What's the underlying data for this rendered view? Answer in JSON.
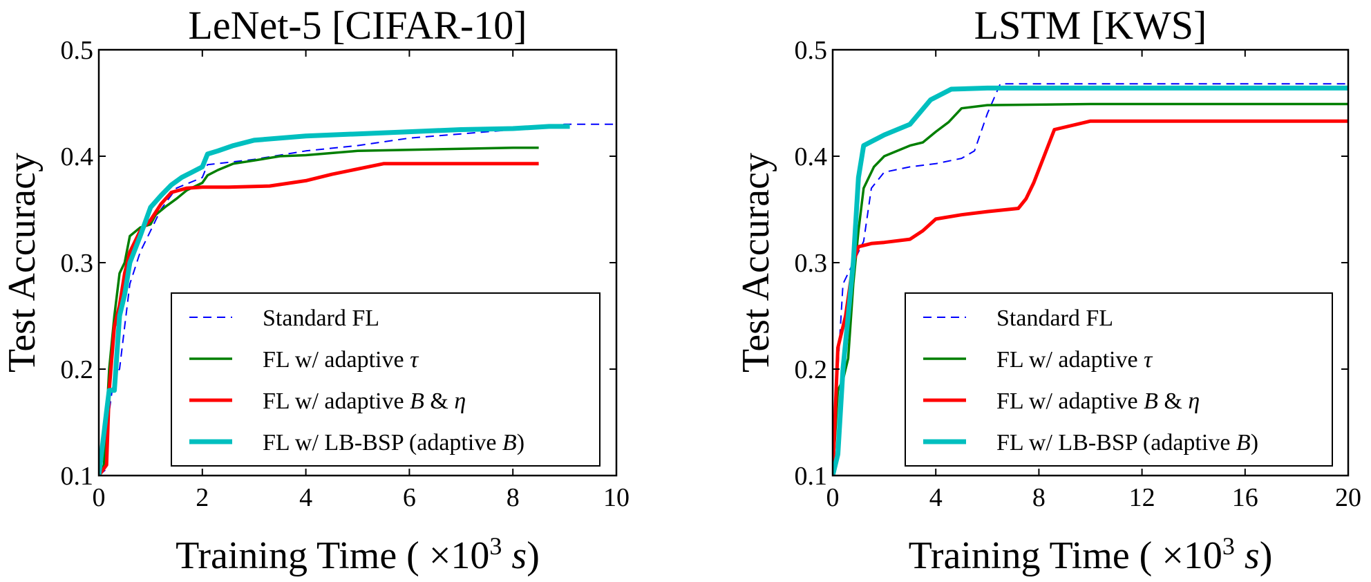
{
  "chart_data": [
    {
      "type": "line",
      "title": "LeNet-5 [CIFAR-10]",
      "xlabel_parts": [
        "Training Time ( ×10",
        "3",
        " s)"
      ],
      "xlabel_unit": "s",
      "ylabel": "Test Accuracy",
      "xlim": [
        0,
        10
      ],
      "ylim": [
        0.1,
        0.5
      ],
      "xticks": [
        0,
        2,
        4,
        6,
        8,
        10
      ],
      "xtick_labels": [
        "0",
        "2",
        "4",
        "6",
        "8",
        "10"
      ],
      "yticks": [
        0.1,
        0.2,
        0.3,
        0.4,
        0.5
      ],
      "ytick_labels": [
        "0.1",
        "0.2",
        "0.3",
        "0.4",
        "0.5"
      ],
      "grid": false,
      "legend_position": "lower-right",
      "legend": [
        {
          "prefix": "Standard FL",
          "symbol": "",
          "mid": "",
          "symbol2": "",
          "suffix": ""
        },
        {
          "prefix": "FL w/ adaptive ",
          "symbol": "τ",
          "mid": "",
          "symbol2": "",
          "suffix": ""
        },
        {
          "prefix": "FL w/ adaptive ",
          "symbol": "B",
          "mid": " & ",
          "symbol2": "η",
          "suffix": ""
        },
        {
          "prefix": "FL w/ LB-BSP (adaptive ",
          "symbol": "B",
          "mid": "",
          "symbol2": "",
          "suffix": ")"
        }
      ],
      "series": [
        {
          "color": "#0000ff",
          "style": "dashed",
          "width": 2,
          "points": [
            [
              0,
              0.1
            ],
            [
              0.12,
              0.105
            ],
            [
              0.2,
              0.16
            ],
            [
              0.3,
              0.195
            ],
            [
              0.4,
              0.2
            ],
            [
              0.5,
              0.24
            ],
            [
              0.6,
              0.28
            ],
            [
              0.8,
              0.31
            ],
            [
              1.0,
              0.33
            ],
            [
              1.2,
              0.35
            ],
            [
              1.5,
              0.37
            ],
            [
              2.0,
              0.38
            ],
            [
              2.1,
              0.392
            ],
            [
              3,
              0.397
            ],
            [
              4,
              0.405
            ],
            [
              5,
              0.41
            ],
            [
              6,
              0.417
            ],
            [
              7,
              0.421
            ],
            [
              8,
              0.425
            ],
            [
              9,
              0.43
            ],
            [
              10,
              0.43
            ]
          ]
        },
        {
          "color": "#007f00",
          "style": "solid",
          "width": 3.5,
          "points": [
            [
              0,
              0.1
            ],
            [
              0.1,
              0.11
            ],
            [
              0.2,
              0.2
            ],
            [
              0.3,
              0.25
            ],
            [
              0.4,
              0.29
            ],
            [
              0.5,
              0.3
            ],
            [
              0.6,
              0.325
            ],
            [
              0.8,
              0.333
            ],
            [
              1.0,
              0.336
            ],
            [
              1.1,
              0.345
            ],
            [
              1.3,
              0.353
            ],
            [
              1.5,
              0.36
            ],
            [
              1.7,
              0.368
            ],
            [
              2.0,
              0.375
            ],
            [
              2.1,
              0.382
            ],
            [
              2.3,
              0.387
            ],
            [
              2.6,
              0.393
            ],
            [
              3,
              0.396
            ],
            [
              3.5,
              0.4
            ],
            [
              4,
              0.401
            ],
            [
              5,
              0.405
            ],
            [
              6,
              0.406
            ],
            [
              7,
              0.407
            ],
            [
              8,
              0.408
            ],
            [
              8.5,
              0.408
            ]
          ]
        },
        {
          "color": "#ff0000",
          "style": "solid",
          "width": 5,
          "points": [
            [
              0,
              0.1
            ],
            [
              0.15,
              0.11
            ],
            [
              0.2,
              0.18
            ],
            [
              0.3,
              0.24
            ],
            [
              0.4,
              0.26
            ],
            [
              0.5,
              0.29
            ],
            [
              0.6,
              0.31
            ],
            [
              0.8,
              0.33
            ],
            [
              1.0,
              0.34
            ],
            [
              1.2,
              0.355
            ],
            [
              1.4,
              0.366
            ],
            [
              1.7,
              0.37
            ],
            [
              2,
              0.371
            ],
            [
              2.5,
              0.371
            ],
            [
              3.3,
              0.372
            ],
            [
              4,
              0.377
            ],
            [
              4.5,
              0.383
            ],
            [
              5.5,
              0.393
            ],
            [
              7,
              0.393
            ],
            [
              8.5,
              0.393
            ]
          ]
        },
        {
          "color": "#00bfbf",
          "style": "solid",
          "width": 7,
          "points": [
            [
              0,
              0.1
            ],
            [
              0.1,
              0.14
            ],
            [
              0.15,
              0.16
            ],
            [
              0.2,
              0.18
            ],
            [
              0.3,
              0.18
            ],
            [
              0.4,
              0.25
            ],
            [
              0.5,
              0.27
            ],
            [
              0.6,
              0.3
            ],
            [
              0.8,
              0.325
            ],
            [
              1.0,
              0.352
            ],
            [
              1.2,
              0.363
            ],
            [
              1.4,
              0.373
            ],
            [
              1.6,
              0.38
            ],
            [
              1.8,
              0.385
            ],
            [
              2.0,
              0.39
            ],
            [
              2.1,
              0.402
            ],
            [
              2.3,
              0.405
            ],
            [
              2.6,
              0.41
            ],
            [
              3,
              0.415
            ],
            [
              4,
              0.419
            ],
            [
              5,
              0.421
            ],
            [
              6,
              0.423
            ],
            [
              7,
              0.425
            ],
            [
              8,
              0.426
            ],
            [
              8.7,
              0.428
            ],
            [
              9.1,
              0.428
            ]
          ]
        }
      ]
    },
    {
      "type": "line",
      "title": "LSTM [KWS]",
      "xlabel_parts": [
        "Training Time ( ×10",
        "3",
        " s)"
      ],
      "xlabel_unit": "s",
      "ylabel": "Test Accuracy",
      "xlim": [
        0,
        20
      ],
      "ylim": [
        0.1,
        0.5
      ],
      "xticks": [
        0,
        4,
        8,
        12,
        16,
        20
      ],
      "xtick_labels": [
        "0",
        "4",
        "8",
        "12",
        "16",
        "20"
      ],
      "yticks": [
        0.1,
        0.2,
        0.3,
        0.4,
        0.5
      ],
      "ytick_labels": [
        "0.1",
        "0.2",
        "0.3",
        "0.4",
        "0.5"
      ],
      "grid": false,
      "legend_position": "lower-right",
      "legend": [
        {
          "prefix": "Standard FL",
          "symbol": "",
          "mid": "",
          "symbol2": "",
          "suffix": ""
        },
        {
          "prefix": "FL w/ adaptive ",
          "symbol": "τ",
          "mid": "",
          "symbol2": "",
          "suffix": ""
        },
        {
          "prefix": "FL w/ adaptive ",
          "symbol": "B",
          "mid": " & ",
          "symbol2": "η",
          "suffix": ""
        },
        {
          "prefix": "FL w/ LB-BSP (adaptive ",
          "symbol": "B",
          "mid": "",
          "symbol2": "",
          "suffix": ")"
        }
      ],
      "series": [
        {
          "color": "#0000ff",
          "style": "dashed",
          "width": 2,
          "points": [
            [
              0,
              0.1
            ],
            [
              0.2,
              0.2
            ],
            [
              0.4,
              0.28
            ],
            [
              0.8,
              0.3
            ],
            [
              1.2,
              0.32
            ],
            [
              1.5,
              0.37
            ],
            [
              2,
              0.385
            ],
            [
              3,
              0.39
            ],
            [
              4,
              0.393
            ],
            [
              5,
              0.398
            ],
            [
              5.5,
              0.405
            ],
            [
              6,
              0.44
            ],
            [
              6.5,
              0.468
            ],
            [
              10,
              0.468
            ],
            [
              15,
              0.468
            ],
            [
              20,
              0.468
            ]
          ]
        },
        {
          "color": "#007f00",
          "style": "solid",
          "width": 3.5,
          "points": [
            [
              0,
              0.1
            ],
            [
              0.2,
              0.18
            ],
            [
              0.4,
              0.19
            ],
            [
              0.6,
              0.21
            ],
            [
              0.8,
              0.28
            ],
            [
              1.0,
              0.33
            ],
            [
              1.2,
              0.37
            ],
            [
              1.6,
              0.39
            ],
            [
              2,
              0.4
            ],
            [
              3,
              0.41
            ],
            [
              3.5,
              0.413
            ],
            [
              4,
              0.423
            ],
            [
              4.5,
              0.432
            ],
            [
              5,
              0.445
            ],
            [
              6,
              0.448
            ],
            [
              10,
              0.449
            ],
            [
              15,
              0.449
            ],
            [
              20,
              0.449
            ]
          ]
        },
        {
          "color": "#ff0000",
          "style": "solid",
          "width": 5,
          "points": [
            [
              0,
              0.1
            ],
            [
              0.2,
              0.22
            ],
            [
              0.5,
              0.25
            ],
            [
              0.8,
              0.3
            ],
            [
              1,
              0.315
            ],
            [
              1.5,
              0.318
            ],
            [
              2,
              0.319
            ],
            [
              3,
              0.322
            ],
            [
              3.5,
              0.33
            ],
            [
              4,
              0.341
            ],
            [
              5,
              0.345
            ],
            [
              6,
              0.348
            ],
            [
              7.2,
              0.351
            ],
            [
              7.5,
              0.36
            ],
            [
              7.8,
              0.375
            ],
            [
              8.2,
              0.4
            ],
            [
              8.6,
              0.425
            ],
            [
              10,
              0.433
            ],
            [
              15,
              0.433
            ],
            [
              20,
              0.433
            ]
          ]
        },
        {
          "color": "#00bfbf",
          "style": "solid",
          "width": 7,
          "points": [
            [
              0,
              0.1
            ],
            [
              0.2,
              0.12
            ],
            [
              0.4,
              0.2
            ],
            [
              0.6,
              0.25
            ],
            [
              0.8,
              0.3
            ],
            [
              1.0,
              0.38
            ],
            [
              1.2,
              0.41
            ],
            [
              1.6,
              0.415
            ],
            [
              2,
              0.42
            ],
            [
              3,
              0.43
            ],
            [
              3.8,
              0.453
            ],
            [
              4.6,
              0.463
            ],
            [
              6,
              0.464
            ],
            [
              10,
              0.464
            ],
            [
              15,
              0.464
            ],
            [
              20,
              0.464
            ]
          ]
        }
      ]
    }
  ]
}
